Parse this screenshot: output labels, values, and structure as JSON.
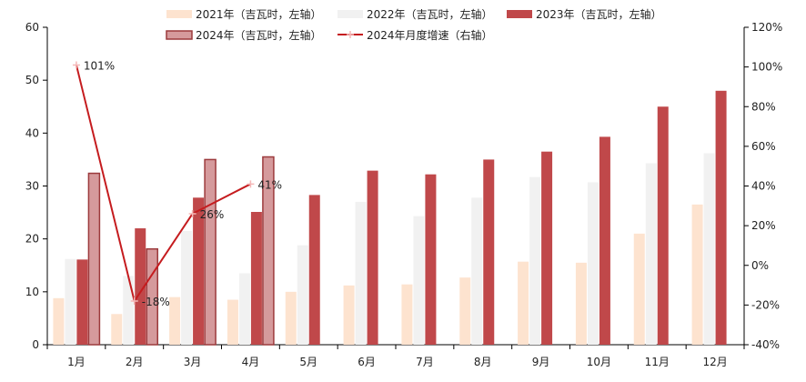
{
  "chart_data": {
    "type": "bar",
    "categories": [
      "1月",
      "2月",
      "3月",
      "4月",
      "5月",
      "6月",
      "7月",
      "8月",
      "9月",
      "10月",
      "11月",
      "12月"
    ],
    "left_axis": {
      "ylim": [
        0,
        60
      ],
      "ticks": [
        "0",
        "10",
        "20",
        "30",
        "40",
        "50",
        "60"
      ]
    },
    "right_axis": {
      "ylim": [
        -40,
        120
      ],
      "ticks": [
        "-40%",
        "-20%",
        "0%",
        "20%",
        "40%",
        "60%",
        "80%",
        "100%",
        "120%"
      ]
    },
    "series": [
      {
        "name": "2021年（吉瓦时，左轴）",
        "type": "bar",
        "axis": "left",
        "color": "#fde3cf",
        "stroke": "#fde3cf",
        "values": [
          8.8,
          5.8,
          9.0,
          8.5,
          10.0,
          11.2,
          11.4,
          12.7,
          15.7,
          15.5,
          21.0,
          26.5
        ]
      },
      {
        "name": "2022年（吉瓦时，左轴）",
        "type": "bar",
        "axis": "left",
        "color": "#f1f1f1",
        "stroke": "#f1f1f1",
        "values": [
          16.2,
          13.0,
          21.5,
          13.5,
          18.8,
          27.0,
          24.3,
          27.8,
          31.7,
          30.7,
          34.3,
          36.2
        ]
      },
      {
        "name": "2023年（吉瓦时，左轴）",
        "type": "bar",
        "axis": "left",
        "color": "#c0484a",
        "stroke": "#c0484a",
        "values": [
          16.1,
          22.0,
          27.8,
          25.1,
          28.3,
          32.9,
          32.2,
          35.0,
          36.5,
          39.3,
          45.0,
          48.0
        ]
      },
      {
        "name": "2024年（吉瓦时，左轴）",
        "type": "bar",
        "axis": "left",
        "color": "#d59a9c",
        "stroke": "#9c3a3c",
        "values": [
          32.4,
          18.1,
          35.0,
          35.5,
          null,
          null,
          null,
          null,
          null,
          null,
          null,
          null
        ]
      },
      {
        "name": "2024年月度增速（右轴）",
        "type": "line",
        "axis": "right",
        "color": "#c51c1f",
        "values": [
          101,
          -18,
          26,
          41,
          null,
          null,
          null,
          null,
          null,
          null,
          null,
          null
        ],
        "labels": [
          "101%",
          "-18%",
          "26%",
          "41%"
        ]
      }
    ],
    "legend_position": "top"
  }
}
